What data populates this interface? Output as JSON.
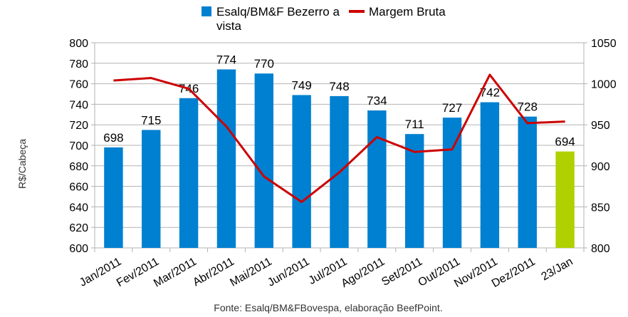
{
  "chart_data": {
    "type": "bar+line",
    "categories": [
      "Jan/2011",
      "Fev/2011",
      "Mar/2011",
      "Abr/2011",
      "Mai/2011",
      "Jun/2011",
      "Jul/2011",
      "Ago/2011",
      "Set/2011",
      "Out/2011",
      "Nov/2011",
      "Dez/2011",
      "23/Jan"
    ],
    "series": [
      {
        "name": "Esalq/BM&F Bezerro a vista",
        "legend_lines": [
          "Esalq/BM&F Bezerro a",
          "vista"
        ],
        "type": "bar",
        "axis": "left",
        "values": [
          698,
          715,
          746,
          774,
          770,
          749,
          748,
          734,
          711,
          727,
          742,
          728,
          694
        ],
        "color": "#0080d0",
        "highlight_last_color": "#b0d000"
      },
      {
        "name": "Margem Bruta",
        "type": "line",
        "axis": "right",
        "values": [
          1004,
          1007,
          994,
          948,
          887,
          856,
          892,
          935,
          917,
          920,
          1011,
          952,
          954
        ],
        "color": "#cc0000"
      }
    ],
    "ylabel": "R$/Cabeça",
    "ylim": [
      600,
      800
    ],
    "yticks": [
      600,
      620,
      640,
      660,
      680,
      700,
      720,
      740,
      760,
      780,
      800
    ],
    "y2lim": [
      800,
      1050
    ],
    "y2ticks": [
      800,
      850,
      900,
      950,
      1000,
      1050
    ],
    "grid": true,
    "legend": "top",
    "source": "Fonte: Esalq/BM&FBovespa, elaboração BeefPoint."
  }
}
